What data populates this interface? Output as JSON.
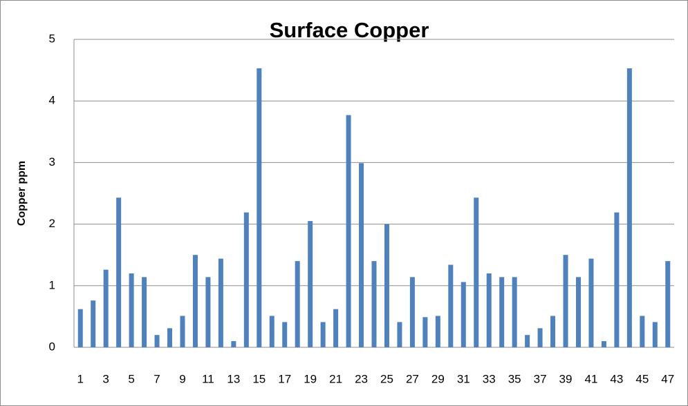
{
  "chart_data": {
    "type": "bar",
    "title": "Surface Copper",
    "y_label": "Copper ppm",
    "categories": [
      "1",
      null,
      "3",
      null,
      "5",
      null,
      "7",
      null,
      "9",
      null,
      "11",
      null,
      "13",
      null,
      "15",
      null,
      "17",
      null,
      "19",
      null,
      "21",
      null,
      "23",
      null,
      "25",
      null,
      "27",
      null,
      "29",
      null,
      "31",
      null,
      "33",
      null,
      "35",
      null,
      "37",
      null,
      "39",
      null,
      "41",
      null,
      "43",
      null,
      "45",
      null,
      "47"
    ],
    "values": [
      0.62,
      0.76,
      1.26,
      2.43,
      1.2,
      1.14,
      0.2,
      0.31,
      0.51,
      1.5,
      1.14,
      1.44,
      0.1,
      2.19,
      4.53,
      0.51,
      0.41,
      1.4,
      2.05,
      0.41,
      0.62,
      3.77,
      2.99,
      1.4,
      2.0,
      0.41,
      1.14,
      0.49,
      0.51,
      1.34,
      1.06,
      2.43,
      1.2,
      1.14,
      1.14,
      0.2,
      0.31,
      0.51,
      1.5,
      1.14,
      1.44,
      0.1,
      2.19,
      4.53,
      0.51,
      0.41,
      1.4
    ],
    "color": "#4f81bd",
    "ylim": [
      0,
      5
    ],
    "yticks": [
      0,
      1,
      2,
      3,
      4,
      5
    ],
    "grid": true
  }
}
